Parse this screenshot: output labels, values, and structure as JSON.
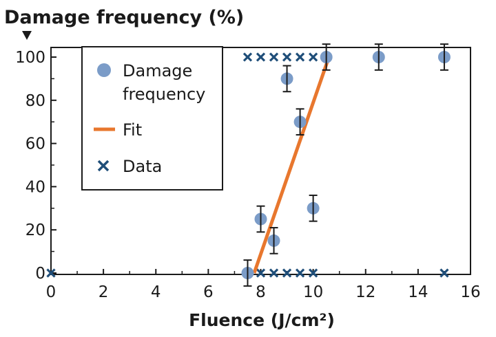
{
  "chart_data": {
    "type": "scatter",
    "ylabel": "Damage frequency (%)",
    "xlabel": "Fluence (J/cm²)",
    "xlim": [
      0,
      16
    ],
    "ylim": [
      0,
      100
    ],
    "xticks": [
      "0",
      "2",
      "4",
      "6",
      "8",
      "10",
      "12",
      "14",
      "16"
    ],
    "yticks": [
      "0",
      "20",
      "40",
      "60",
      "80",
      "100"
    ],
    "grid": false,
    "legend_position": "top-left",
    "colors": {
      "damage": "#7b9cc8",
      "fit": "#e8772e",
      "data": "#1f4e79",
      "axis": "#1a1a1a"
    },
    "series": [
      {
        "name": "Damage frequency",
        "marker": "circle",
        "points": [
          {
            "x": 7.5,
            "y": 0,
            "err": 6
          },
          {
            "x": 8.0,
            "y": 25,
            "err": 6
          },
          {
            "x": 8.5,
            "y": 15,
            "err": 6
          },
          {
            "x": 9.0,
            "y": 90,
            "err": 6
          },
          {
            "x": 9.5,
            "y": 70,
            "err": 6
          },
          {
            "x": 10.0,
            "y": 30,
            "err": 6
          },
          {
            "x": 10.5,
            "y": 100,
            "err": 6
          },
          {
            "x": 12.5,
            "y": 100,
            "err": 6
          },
          {
            "x": 15.0,
            "y": 100,
            "err": 6
          }
        ]
      },
      {
        "name": "Fit",
        "marker": "line",
        "points": [
          {
            "x": 7.75,
            "y": 0
          },
          {
            "x": 10.6,
            "y": 100
          }
        ]
      },
      {
        "name": "Data",
        "marker": "x",
        "points": [
          {
            "x": 0,
            "y": 0
          },
          {
            "x": 7.5,
            "y": 0
          },
          {
            "x": 8.0,
            "y": 0
          },
          {
            "x": 8.5,
            "y": 0
          },
          {
            "x": 9.0,
            "y": 0
          },
          {
            "x": 9.5,
            "y": 0
          },
          {
            "x": 10.0,
            "y": 0
          },
          {
            "x": 15.0,
            "y": 0
          },
          {
            "x": 7.5,
            "y": 100
          },
          {
            "x": 8.0,
            "y": 100
          },
          {
            "x": 8.5,
            "y": 100
          },
          {
            "x": 9.0,
            "y": 100
          },
          {
            "x": 9.5,
            "y": 100
          },
          {
            "x": 10.0,
            "y": 100
          },
          {
            "x": 10.5,
            "y": 100
          },
          {
            "x": 12.5,
            "y": 100
          },
          {
            "x": 15.0,
            "y": 100
          }
        ]
      }
    ],
    "legend": [
      {
        "label_lines": [
          "Damage",
          "frequency"
        ],
        "marker": "circle"
      },
      {
        "label_lines": [
          "Fit"
        ],
        "marker": "line"
      },
      {
        "label_lines": [
          "Data"
        ],
        "marker": "x"
      }
    ]
  }
}
